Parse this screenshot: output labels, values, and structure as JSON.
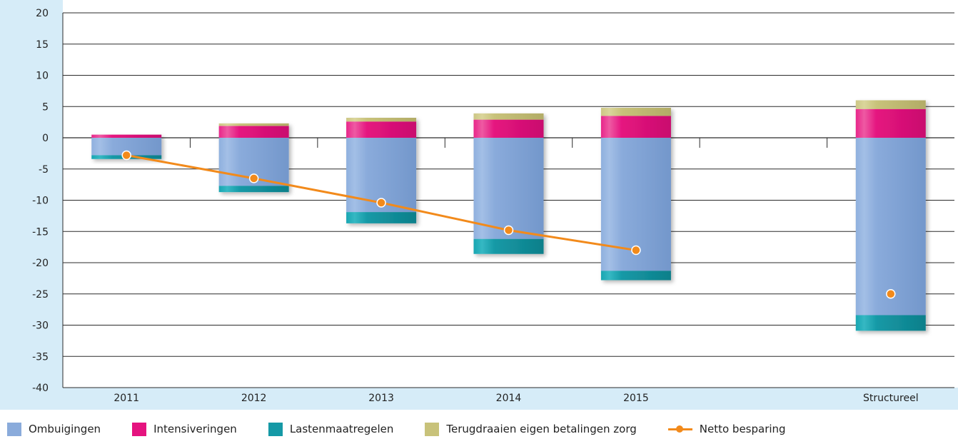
{
  "chart_data": {
    "type": "bar",
    "stacked": true,
    "categories": [
      "2011",
      "2012",
      "2013",
      "2014",
      "2015",
      "",
      "Structureel"
    ],
    "ylim": [
      -40,
      20
    ],
    "yticks": [
      20,
      15,
      10,
      5,
      0,
      -5,
      -10,
      -15,
      -20,
      -25,
      -30,
      -35,
      -40
    ],
    "grid": true,
    "legend_position": "bottom",
    "series": [
      {
        "name": "Ombuigingen",
        "color": "#8aabdb",
        "values": [
          -2.8,
          -7.7,
          -11.9,
          -16.2,
          -21.3,
          null,
          -28.4
        ]
      },
      {
        "name": "Intensiveringen",
        "color": "#e5137f",
        "values": [
          0.5,
          1.9,
          2.6,
          2.9,
          3.5,
          null,
          4.6
        ]
      },
      {
        "name": "Lastenmaatregelen",
        "color": "#1599a6",
        "values": [
          -0.6,
          -1.0,
          -1.8,
          -2.4,
          -1.5,
          null,
          -2.5
        ]
      },
      {
        "name": "Terugdraaien eigen betalingen zorg",
        "color": "#c8c27a",
        "values": [
          0,
          0.4,
          0.6,
          1.0,
          1.3,
          null,
          1.4
        ]
      }
    ],
    "line_series": {
      "name": "Netto besparing",
      "color": "#f28a1b",
      "values": [
        -2.8,
        -6.5,
        -10.4,
        -14.8,
        -18.0,
        null,
        -25.0
      ]
    }
  },
  "legend": {
    "ombuigingen": "Ombuigingen",
    "intensiveringen": "Intensiveringen",
    "lastenmaatregelen": "Lastenmaatregelen",
    "terugdraaien": "Terugdraaien eigen betalingen zorg",
    "netto": "Netto besparing"
  }
}
